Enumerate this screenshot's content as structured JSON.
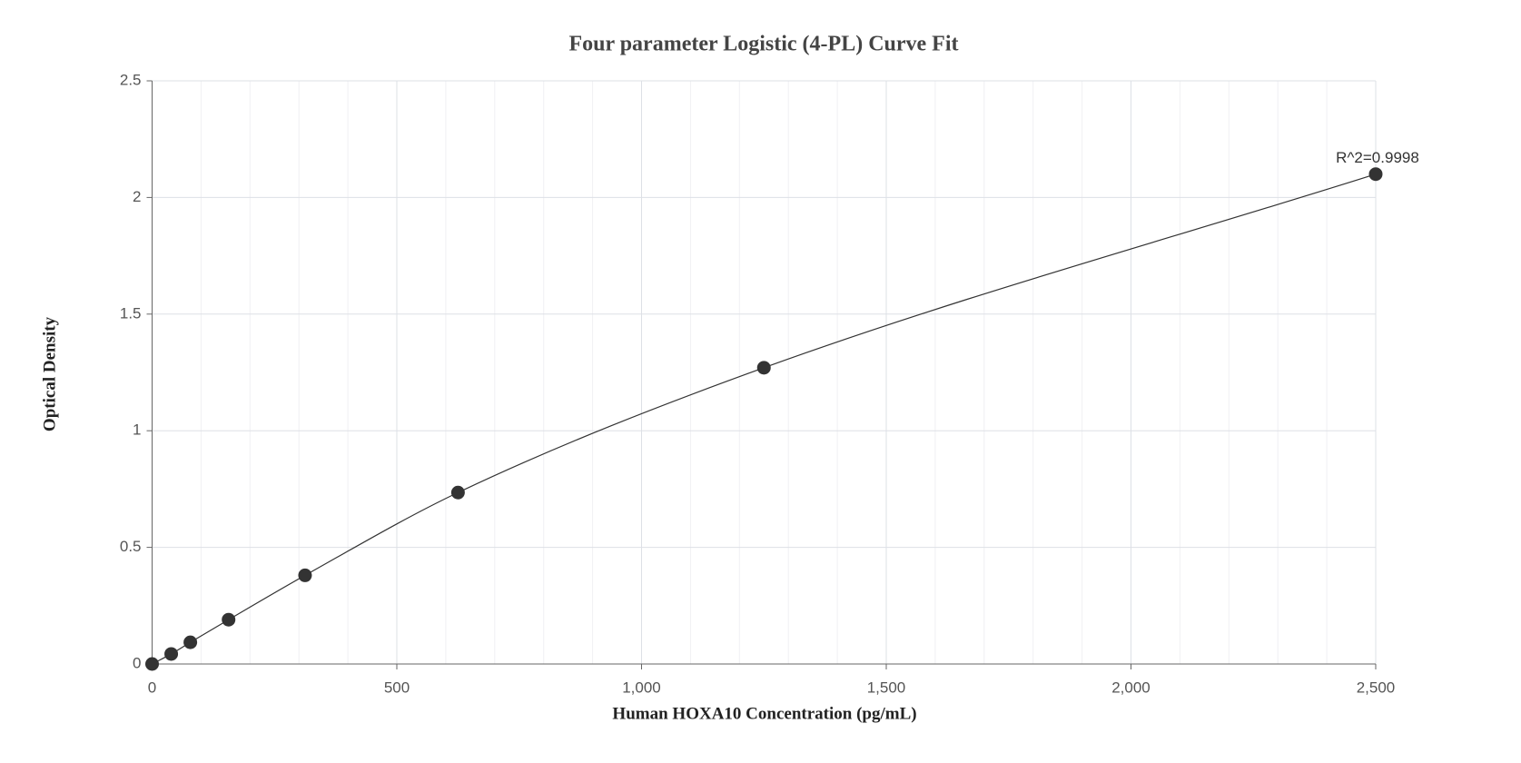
{
  "chart_data": {
    "type": "scatter",
    "title": "Four parameter Logistic (4-PL) Curve Fit",
    "x_label": "Human HOXA10 Concentration (pg/mL)",
    "y_label": "Optical Density",
    "annotation": "R^2=0.9998",
    "series": [
      {
        "color": "#333333",
        "x": [
          0,
          39.06,
          78.125,
          156.25,
          312.5,
          625,
          1250,
          2500
        ],
        "values": [
          0,
          0.043,
          0.093,
          0.19,
          0.38,
          0.735,
          1.27,
          2.1
        ]
      }
    ],
    "xlim": [
      0,
      2500
    ],
    "xticks": [
      0,
      500,
      {
        "value": 1000,
        "label": "1,000"
      },
      {
        "value": 1500,
        "label": "1,500"
      },
      {
        "value": 2000,
        "label": "2,000"
      },
      {
        "value": 2500,
        "label": "2,500"
      }
    ],
    "ylim": [
      0,
      2.5
    ],
    "yticks": [
      0,
      0.5,
      1,
      1.5,
      2,
      2.5
    ],
    "grid": true
  }
}
